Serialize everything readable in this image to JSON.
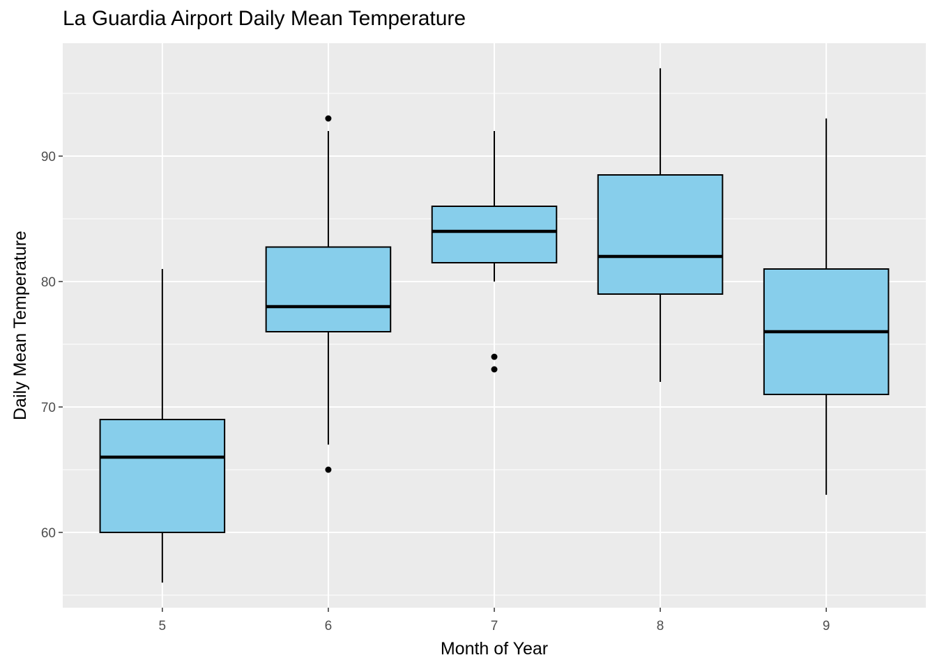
{
  "colors": {
    "panel_background": "#EBEBEB",
    "grid_major": "#FFFFFF",
    "box_fill": "#87CEEB",
    "box_outline": "#000000",
    "tick_text": "#4D4D4D"
  },
  "chart_data": {
    "type": "boxplot",
    "title": "La Guardia Airport Daily Mean Temperature",
    "xlabel": "Month of Year",
    "ylabel": "Daily Mean Temperature",
    "ylim": [
      54,
      99
    ],
    "yticks": [
      60,
      70,
      80,
      90
    ],
    "grid": true,
    "categories": [
      "5",
      "6",
      "7",
      "8",
      "9"
    ],
    "boxes": [
      {
        "category": "5",
        "whisker_low": 56,
        "q1": 60,
        "median": 66,
        "q3": 69,
        "whisker_high": 81,
        "outliers": []
      },
      {
        "category": "6",
        "whisker_low": 67,
        "q1": 76,
        "median": 78,
        "q3": 82.75,
        "whisker_high": 92,
        "outliers": [
          93,
          65
        ]
      },
      {
        "category": "7",
        "whisker_low": 80,
        "q1": 81.5,
        "median": 84,
        "q3": 86,
        "whisker_high": 92,
        "outliers": [
          74,
          73
        ]
      },
      {
        "category": "8",
        "whisker_low": 72,
        "q1": 79,
        "median": 82,
        "q3": 88.5,
        "whisker_high": 97,
        "outliers": []
      },
      {
        "category": "9",
        "whisker_low": 63,
        "q1": 71,
        "median": 76,
        "q3": 81,
        "whisker_high": 93,
        "outliers": []
      }
    ]
  }
}
